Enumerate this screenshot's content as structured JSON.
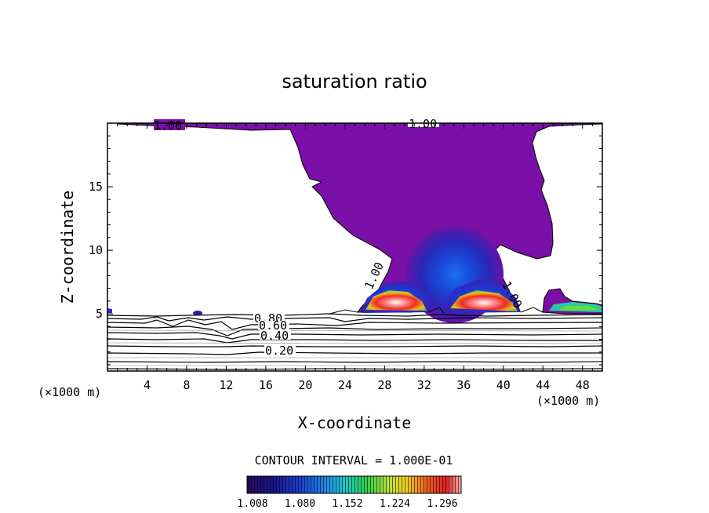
{
  "chart_data": {
    "type": "contour",
    "title": "saturation ratio",
    "xlabel": "X-coordinate",
    "ylabel": "Z-coordinate",
    "x_unit": "(×1000 m)",
    "xlim": [
      0,
      50
    ],
    "ylim": [
      0.5,
      20
    ],
    "x_ticks": [
      4,
      8,
      12,
      16,
      20,
      24,
      28,
      32,
      36,
      40,
      44,
      48
    ],
    "y_ticks": [
      5,
      10,
      15
    ],
    "contour_line_labels": [
      "1.00",
      "1.00",
      "1.00",
      "1.00",
      "0.80",
      "0.60",
      "0.40",
      "0.20"
    ],
    "contour_interval_text": "CONTOUR INTERVAL = 1.000E-01",
    "colorbar_labels": [
      "1.008",
      "1.080",
      "1.152",
      "1.224",
      "1.296"
    ],
    "colorbar_colors": [
      "#2a0a5a",
      "#1a1aa8",
      "#1e6be6",
      "#1fc0c0",
      "#30d040",
      "#b0e040",
      "#f0d020",
      "#f07020",
      "#e02020",
      "#ff9090"
    ],
    "fill_color": "#7a10a8"
  }
}
